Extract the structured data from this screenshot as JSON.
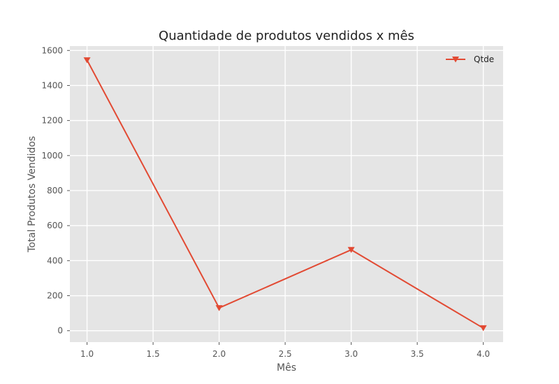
{
  "chart_data": {
    "type": "line",
    "title": "Quantidade de produtos vendidos x mês",
    "xlabel": "Mês",
    "ylabel": "Total Produtos Vendidos",
    "xlim": [
      0.87,
      4.15
    ],
    "ylim": [
      -65,
      1625
    ],
    "xticks": [
      1.0,
      1.5,
      2.0,
      2.5,
      3.0,
      3.5,
      4.0
    ],
    "xtick_labels": [
      "1.0",
      "1.5",
      "2.0",
      "2.5",
      "3.0",
      "3.5",
      "4.0"
    ],
    "yticks": [
      0,
      200,
      400,
      600,
      800,
      1000,
      1200,
      1400,
      1600
    ],
    "ytick_labels": [
      "0",
      "200",
      "400",
      "600",
      "800",
      "1000",
      "1200",
      "1400",
      "1600"
    ],
    "grid": true,
    "legend_position": "upper right",
    "series": [
      {
        "name": "Qtde",
        "color": "#e24a33",
        "marker": "triangle-down",
        "x": [
          1.0,
          2.0,
          3.0,
          4.0
        ],
        "y": [
          1545,
          130,
          462,
          15
        ]
      }
    ]
  }
}
